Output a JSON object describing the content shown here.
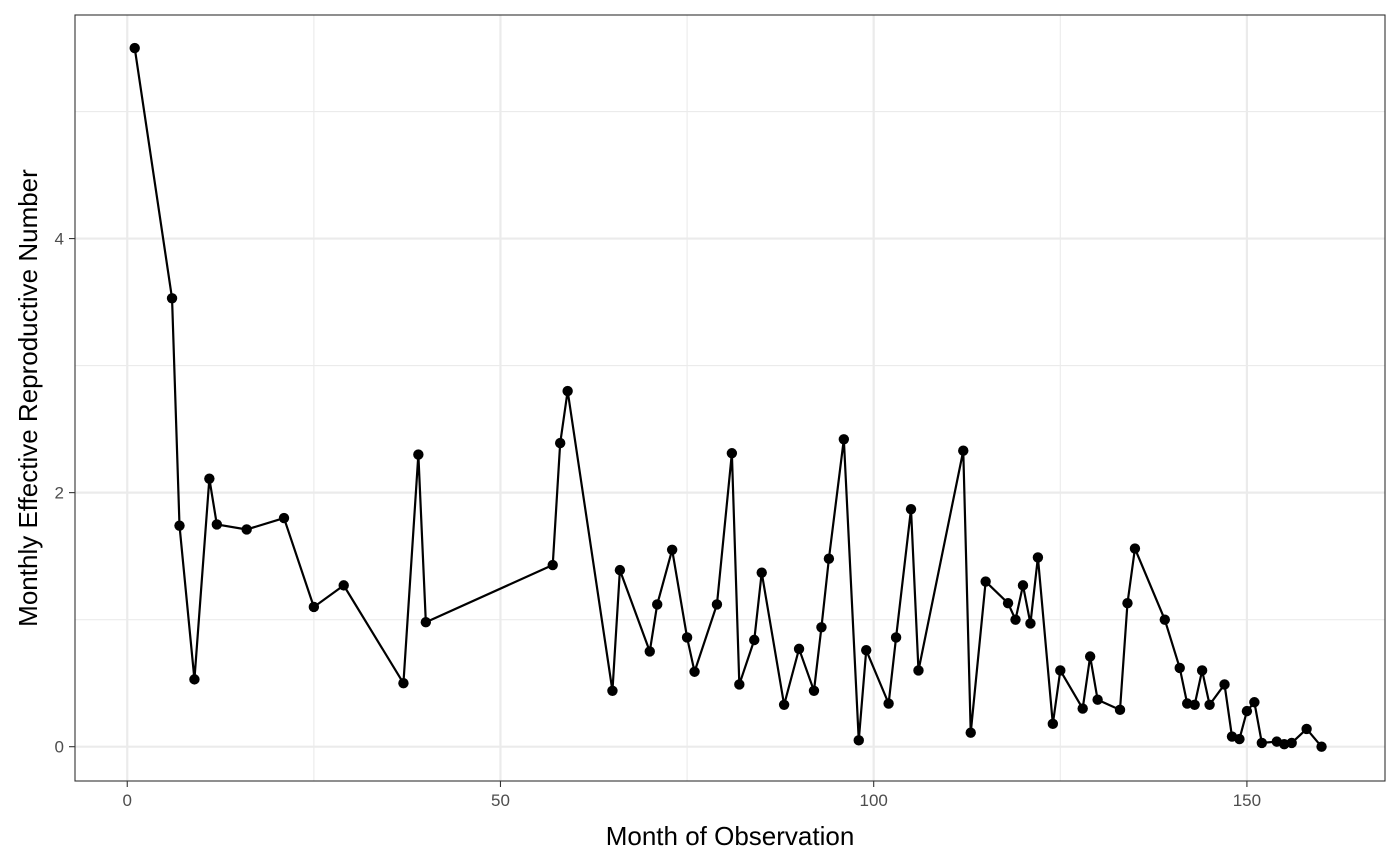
{
  "chart_data": {
    "type": "line",
    "title": "",
    "xlabel": "Month of Observation",
    "ylabel": "Monthly Effective Reproductive Number",
    "xlim": [
      -7,
      168.5
    ],
    "ylim": [
      -0.27,
      5.76
    ],
    "x_ticks": [
      0,
      50,
      100,
      150
    ],
    "y_ticks": [
      0,
      2,
      4
    ],
    "x_tick_labels": [
      "0",
      "50",
      "100",
      "150"
    ],
    "y_tick_labels": [
      "0",
      "2",
      "4"
    ],
    "grid": true,
    "legend": "none",
    "markers": true,
    "colors": {
      "line": "#000000",
      "point": "#000000",
      "grid": "#ebebeb",
      "border": "#333333"
    },
    "series": [
      {
        "x": [
          1,
          6,
          7,
          9,
          11,
          12,
          16,
          21,
          25,
          29,
          37,
          39,
          40,
          57,
          58,
          59,
          65,
          66,
          70,
          71,
          73,
          75,
          76,
          79,
          81,
          82,
          84,
          85,
          88,
          90,
          92,
          93,
          94,
          96,
          98,
          99,
          102,
          103,
          105,
          106,
          112,
          113,
          115,
          118,
          119,
          120,
          121,
          122,
          124,
          125,
          128,
          129,
          130,
          133,
          134,
          135,
          139,
          141,
          142,
          143,
          144,
          145,
          147,
          148,
          149,
          150,
          151,
          152,
          154,
          155,
          156,
          158,
          160
        ],
        "y": [
          5.5,
          3.53,
          1.74,
          0.53,
          2.11,
          1.75,
          1.71,
          1.8,
          1.1,
          1.27,
          0.5,
          2.3,
          0.98,
          1.43,
          2.39,
          2.8,
          0.44,
          1.39,
          0.75,
          1.12,
          1.55,
          0.86,
          0.59,
          1.12,
          2.31,
          0.49,
          0.84,
          1.37,
          0.33,
          0.77,
          0.44,
          0.94,
          1.48,
          2.42,
          0.05,
          0.76,
          0.34,
          0.86,
          1.87,
          0.6,
          2.33,
          0.11,
          1.3,
          1.13,
          1.0,
          1.27,
          0.97,
          1.49,
          0.18,
          0.6,
          0.3,
          0.71,
          0.37,
          0.29,
          1.13,
          1.56,
          1.0,
          0.62,
          0.34,
          0.33,
          0.6,
          0.33,
          0.49,
          0.08,
          0.06,
          0.28,
          0.35,
          0.03,
          0.04,
          0.02,
          0.03,
          0.14,
          0.0
        ]
      }
    ]
  }
}
